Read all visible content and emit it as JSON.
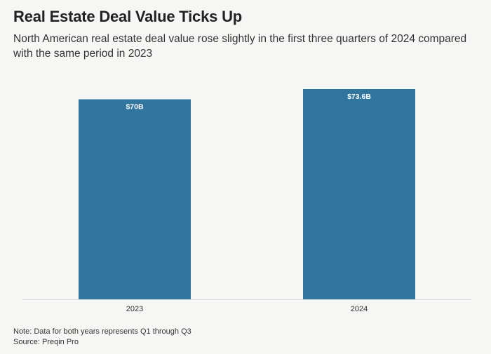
{
  "title": "Real Estate Deal Value Ticks Up",
  "subtitle": "North American real estate deal value rose slightly in the first three quarters of 2024 compared with the same period in 2023",
  "footer": {
    "note": "Note: Data for both years represents Q1 through Q3",
    "source": "Source: Preqin Pro"
  },
  "colors": {
    "bar": "#2f759e",
    "bar_label": "#ffffff",
    "axis": "#dddddd",
    "tick_label": "#333333",
    "background": "#f6f6f4"
  },
  "chart_data": {
    "type": "bar",
    "title": "Real Estate Deal Value Ticks Up",
    "categories": [
      "2023",
      "2024"
    ],
    "values": [
      70,
      73.6
    ],
    "data_labels": [
      "$70B",
      "$73.6B"
    ],
    "unit": "$B",
    "xlabel": "",
    "ylabel": "",
    "ylim": [
      0,
      73.6
    ],
    "grid": false,
    "legend": "none"
  }
}
